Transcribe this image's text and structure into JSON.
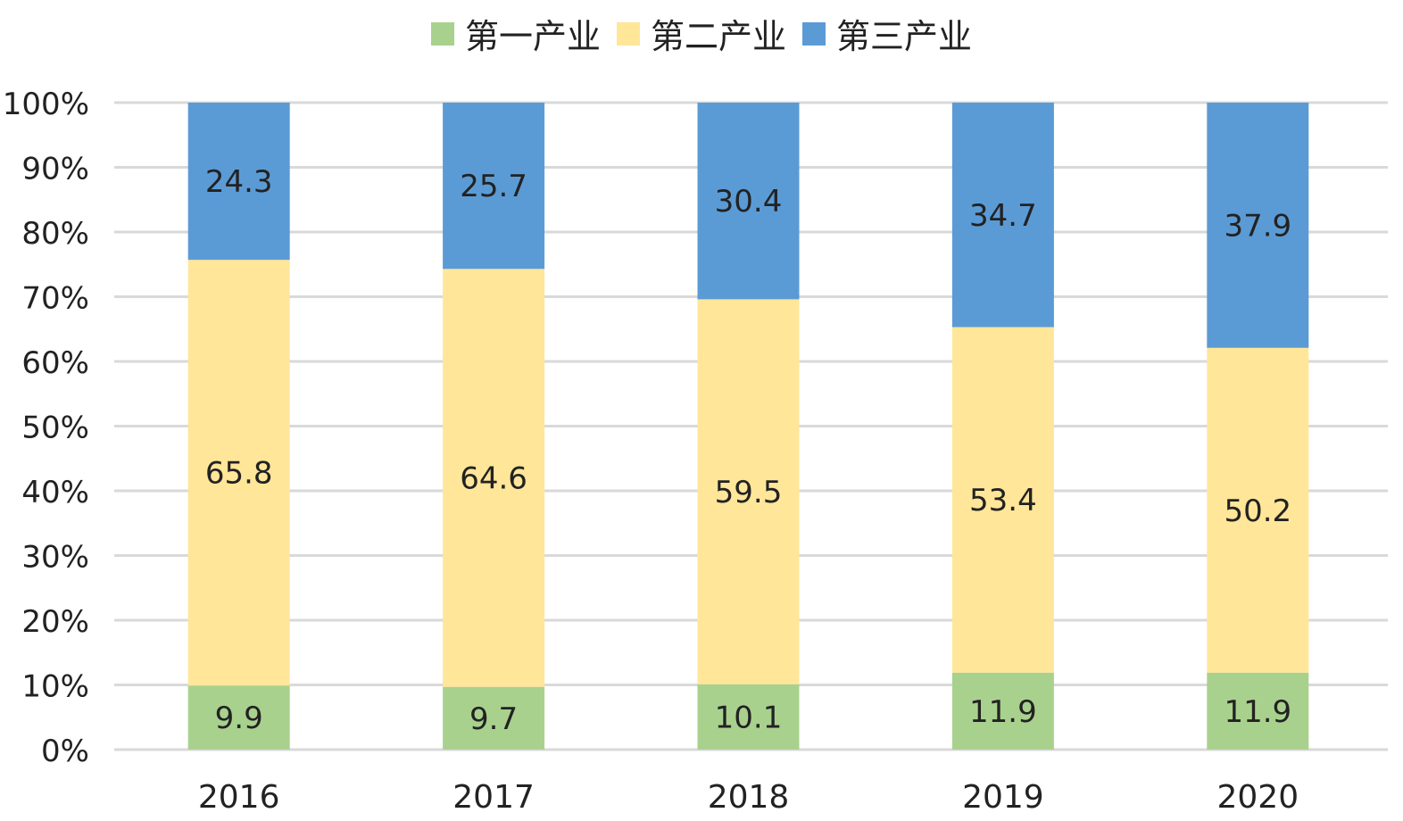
{
  "chart_data": {
    "type": "bar",
    "stacked": true,
    "percent": true,
    "categories": [
      "2016",
      "2017",
      "2018",
      "2019",
      "2020"
    ],
    "series": [
      {
        "name": "第一产业",
        "color": "#a9d18e",
        "values": [
          9.9,
          9.7,
          10.1,
          11.9,
          11.9
        ]
      },
      {
        "name": "第二产业",
        "color": "#ffe699",
        "values": [
          65.8,
          64.6,
          59.5,
          53.4,
          50.2
        ]
      },
      {
        "name": "第三产业",
        "color": "#5b9bd5",
        "values": [
          24.3,
          25.7,
          30.4,
          34.7,
          37.9
        ]
      }
    ],
    "y_ticks": [
      "0%",
      "10%",
      "20%",
      "30%",
      "40%",
      "50%",
      "60%",
      "70%",
      "80%",
      "90%",
      "100%"
    ],
    "ylim": [
      0,
      100
    ],
    "grid": true,
    "legend_position": "top",
    "title": "",
    "xlabel": "",
    "ylabel": ""
  }
}
